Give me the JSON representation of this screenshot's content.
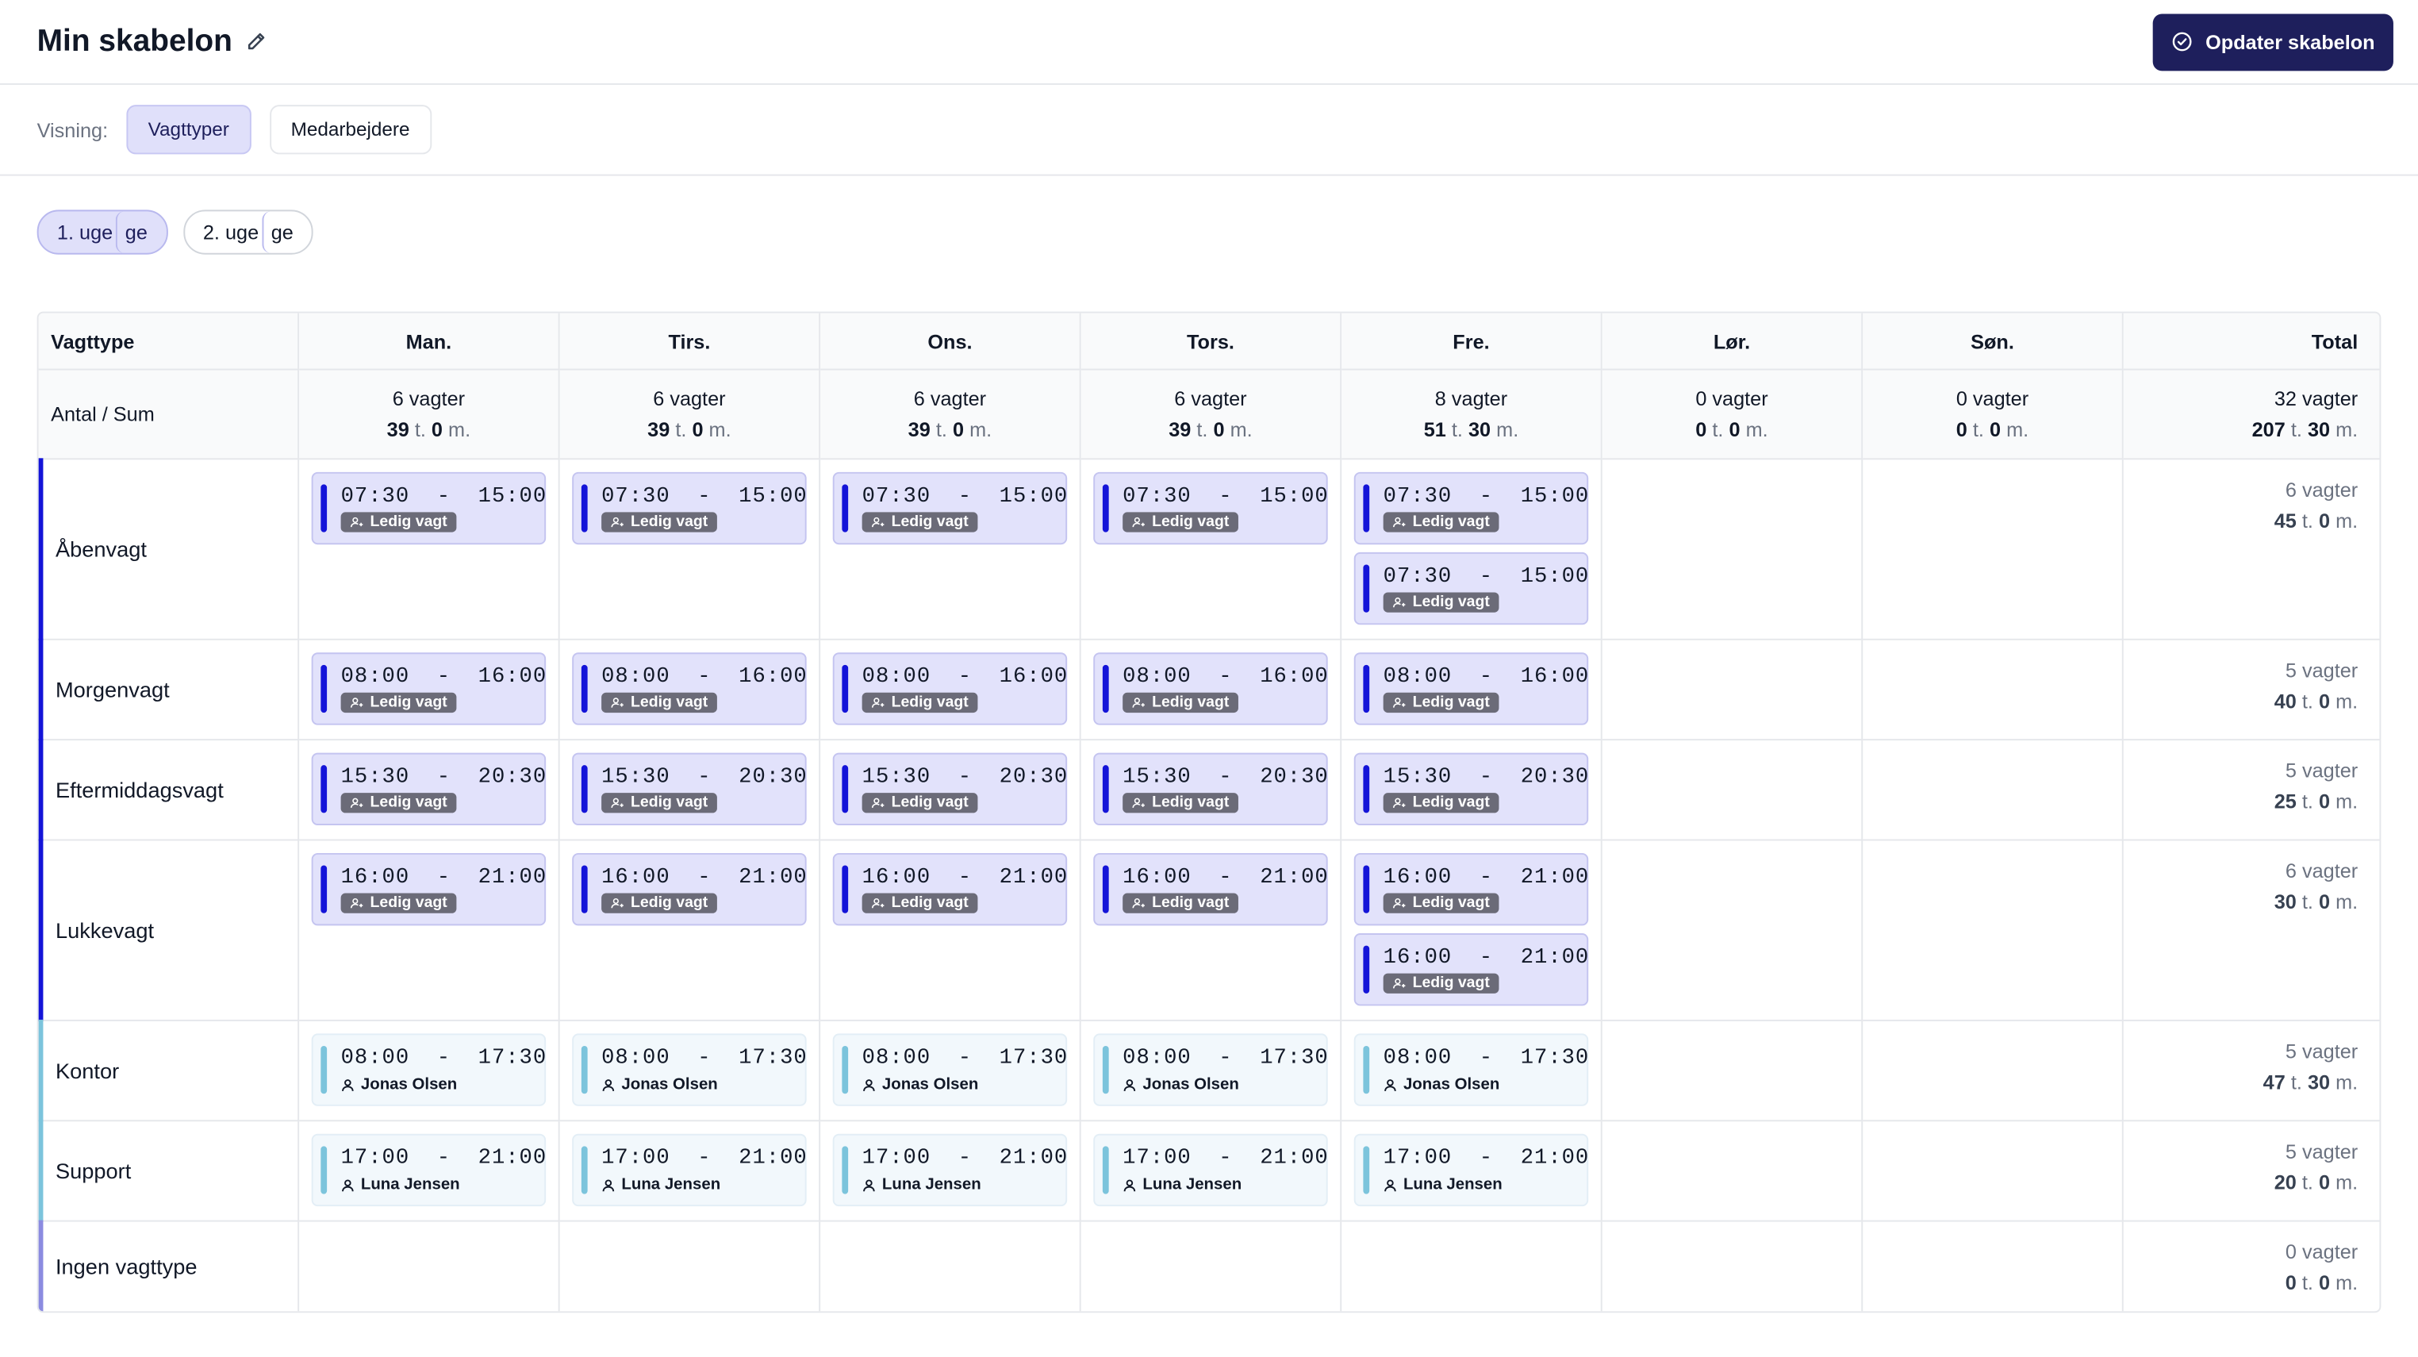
{
  "header": {
    "title": "Min skabelon",
    "update_label": "Opdater skabelon"
  },
  "view": {
    "label": "Visning:",
    "options": [
      "Vagttyper",
      "Medarbejdere"
    ],
    "active": "Vagttyper"
  },
  "weeks": [
    {
      "label": "1. uge",
      "ghost": "ge",
      "active": true
    },
    {
      "label": "2. uge",
      "ghost": "ge",
      "active": false
    }
  ],
  "colors": {
    "accent_dark": "#1e1f5c",
    "open_bar": "#1414d8",
    "staff_bar": "#7cc4dc",
    "none_bar": "#8b8be0"
  },
  "table": {
    "headers": [
      "Vagttype",
      "Man.",
      "Tirs.",
      "Ons.",
      "Tors.",
      "Fre.",
      "Lør.",
      "Søn.",
      "Total"
    ],
    "sum_label": "Antal / Sum",
    "sums": [
      {
        "count": "6 vagter",
        "h": "39",
        "m": "0"
      },
      {
        "count": "6 vagter",
        "h": "39",
        "m": "0"
      },
      {
        "count": "6 vagter",
        "h": "39",
        "m": "0"
      },
      {
        "count": "6 vagter",
        "h": "39",
        "m": "0"
      },
      {
        "count": "8 vagter",
        "h": "51",
        "m": "30"
      },
      {
        "count": "0 vagter",
        "h": "0",
        "m": "0"
      },
      {
        "count": "0 vagter",
        "h": "0",
        "m": "0"
      },
      {
        "count": "32 vagter",
        "h": "207",
        "m": "30"
      }
    ],
    "unit_h": "t.",
    "unit_m": "m.",
    "rows": [
      {
        "name": "Åbenvagt",
        "bar": "#1414d8",
        "kind": "open",
        "days": [
          [
            {
              "time": "07:30  -  15:00",
              "label": "Ledig vagt"
            }
          ],
          [
            {
              "time": "07:30  -  15:00",
              "label": "Ledig vagt"
            }
          ],
          [
            {
              "time": "07:30  -  15:00",
              "label": "Ledig vagt"
            }
          ],
          [
            {
              "time": "07:30  -  15:00",
              "label": "Ledig vagt"
            }
          ],
          [
            {
              "time": "07:30  -  15:00",
              "label": "Ledig vagt"
            },
            {
              "time": "07:30  -  15:00",
              "label": "Ledig vagt"
            }
          ],
          [],
          []
        ],
        "total": {
          "count": "6 vagter",
          "h": "45",
          "m": "0"
        }
      },
      {
        "name": "Morgenvagt",
        "bar": "#1414d8",
        "kind": "open",
        "days": [
          [
            {
              "time": "08:00  -  16:00",
              "label": "Ledig vagt"
            }
          ],
          [
            {
              "time": "08:00  -  16:00",
              "label": "Ledig vagt"
            }
          ],
          [
            {
              "time": "08:00  -  16:00",
              "label": "Ledig vagt"
            }
          ],
          [
            {
              "time": "08:00  -  16:00",
              "label": "Ledig vagt"
            }
          ],
          [
            {
              "time": "08:00  -  16:00",
              "label": "Ledig vagt"
            }
          ],
          [],
          []
        ],
        "total": {
          "count": "5 vagter",
          "h": "40",
          "m": "0"
        }
      },
      {
        "name": "Eftermiddagsvagt",
        "bar": "#1414d8",
        "kind": "open",
        "days": [
          [
            {
              "time": "15:30  -  20:30",
              "label": "Ledig vagt"
            }
          ],
          [
            {
              "time": "15:30  -  20:30",
              "label": "Ledig vagt"
            }
          ],
          [
            {
              "time": "15:30  -  20:30",
              "label": "Ledig vagt"
            }
          ],
          [
            {
              "time": "15:30  -  20:30",
              "label": "Ledig vagt"
            }
          ],
          [
            {
              "time": "15:30  -  20:30",
              "label": "Ledig vagt"
            }
          ],
          [],
          []
        ],
        "total": {
          "count": "5 vagter",
          "h": "25",
          "m": "0"
        }
      },
      {
        "name": "Lukkevagt",
        "bar": "#1414d8",
        "kind": "open",
        "days": [
          [
            {
              "time": "16:00  -  21:00",
              "label": "Ledig vagt"
            }
          ],
          [
            {
              "time": "16:00  -  21:00",
              "label": "Ledig vagt"
            }
          ],
          [
            {
              "time": "16:00  -  21:00",
              "label": "Ledig vagt"
            }
          ],
          [
            {
              "time": "16:00  -  21:00",
              "label": "Ledig vagt"
            }
          ],
          [
            {
              "time": "16:00  -  21:00",
              "label": "Ledig vagt"
            },
            {
              "time": "16:00  -  21:00",
              "label": "Ledig vagt"
            }
          ],
          [],
          []
        ],
        "total": {
          "count": "6 vagter",
          "h": "30",
          "m": "0"
        }
      },
      {
        "name": "Kontor",
        "bar": "#7cc4dc",
        "kind": "staff",
        "days": [
          [
            {
              "time": "08:00  -  17:30",
              "label": "Jonas Olsen"
            }
          ],
          [
            {
              "time": "08:00  -  17:30",
              "label": "Jonas Olsen"
            }
          ],
          [
            {
              "time": "08:00  -  17:30",
              "label": "Jonas Olsen"
            }
          ],
          [
            {
              "time": "08:00  -  17:30",
              "label": "Jonas Olsen"
            }
          ],
          [
            {
              "time": "08:00  -  17:30",
              "label": "Jonas Olsen"
            }
          ],
          [],
          []
        ],
        "total": {
          "count": "5 vagter",
          "h": "47",
          "m": "30"
        }
      },
      {
        "name": "Support",
        "bar": "#7cc4dc",
        "kind": "staff",
        "days": [
          [
            {
              "time": "17:00  -  21:00",
              "label": "Luna Jensen"
            }
          ],
          [
            {
              "time": "17:00  -  21:00",
              "label": "Luna Jensen"
            }
          ],
          [
            {
              "time": "17:00  -  21:00",
              "label": "Luna Jensen"
            }
          ],
          [
            {
              "time": "17:00  -  21:00",
              "label": "Luna Jensen"
            }
          ],
          [
            {
              "time": "17:00  -  21:00",
              "label": "Luna Jensen"
            }
          ],
          [],
          []
        ],
        "total": {
          "count": "5 vagter",
          "h": "20",
          "m": "0"
        }
      },
      {
        "name": "Ingen vagttype",
        "bar": "#8b8be0",
        "kind": "none",
        "days": [
          [],
          [],
          [],
          [],
          [],
          [],
          []
        ],
        "total": {
          "count": "0 vagter",
          "h": "0",
          "m": "0"
        }
      }
    ]
  }
}
